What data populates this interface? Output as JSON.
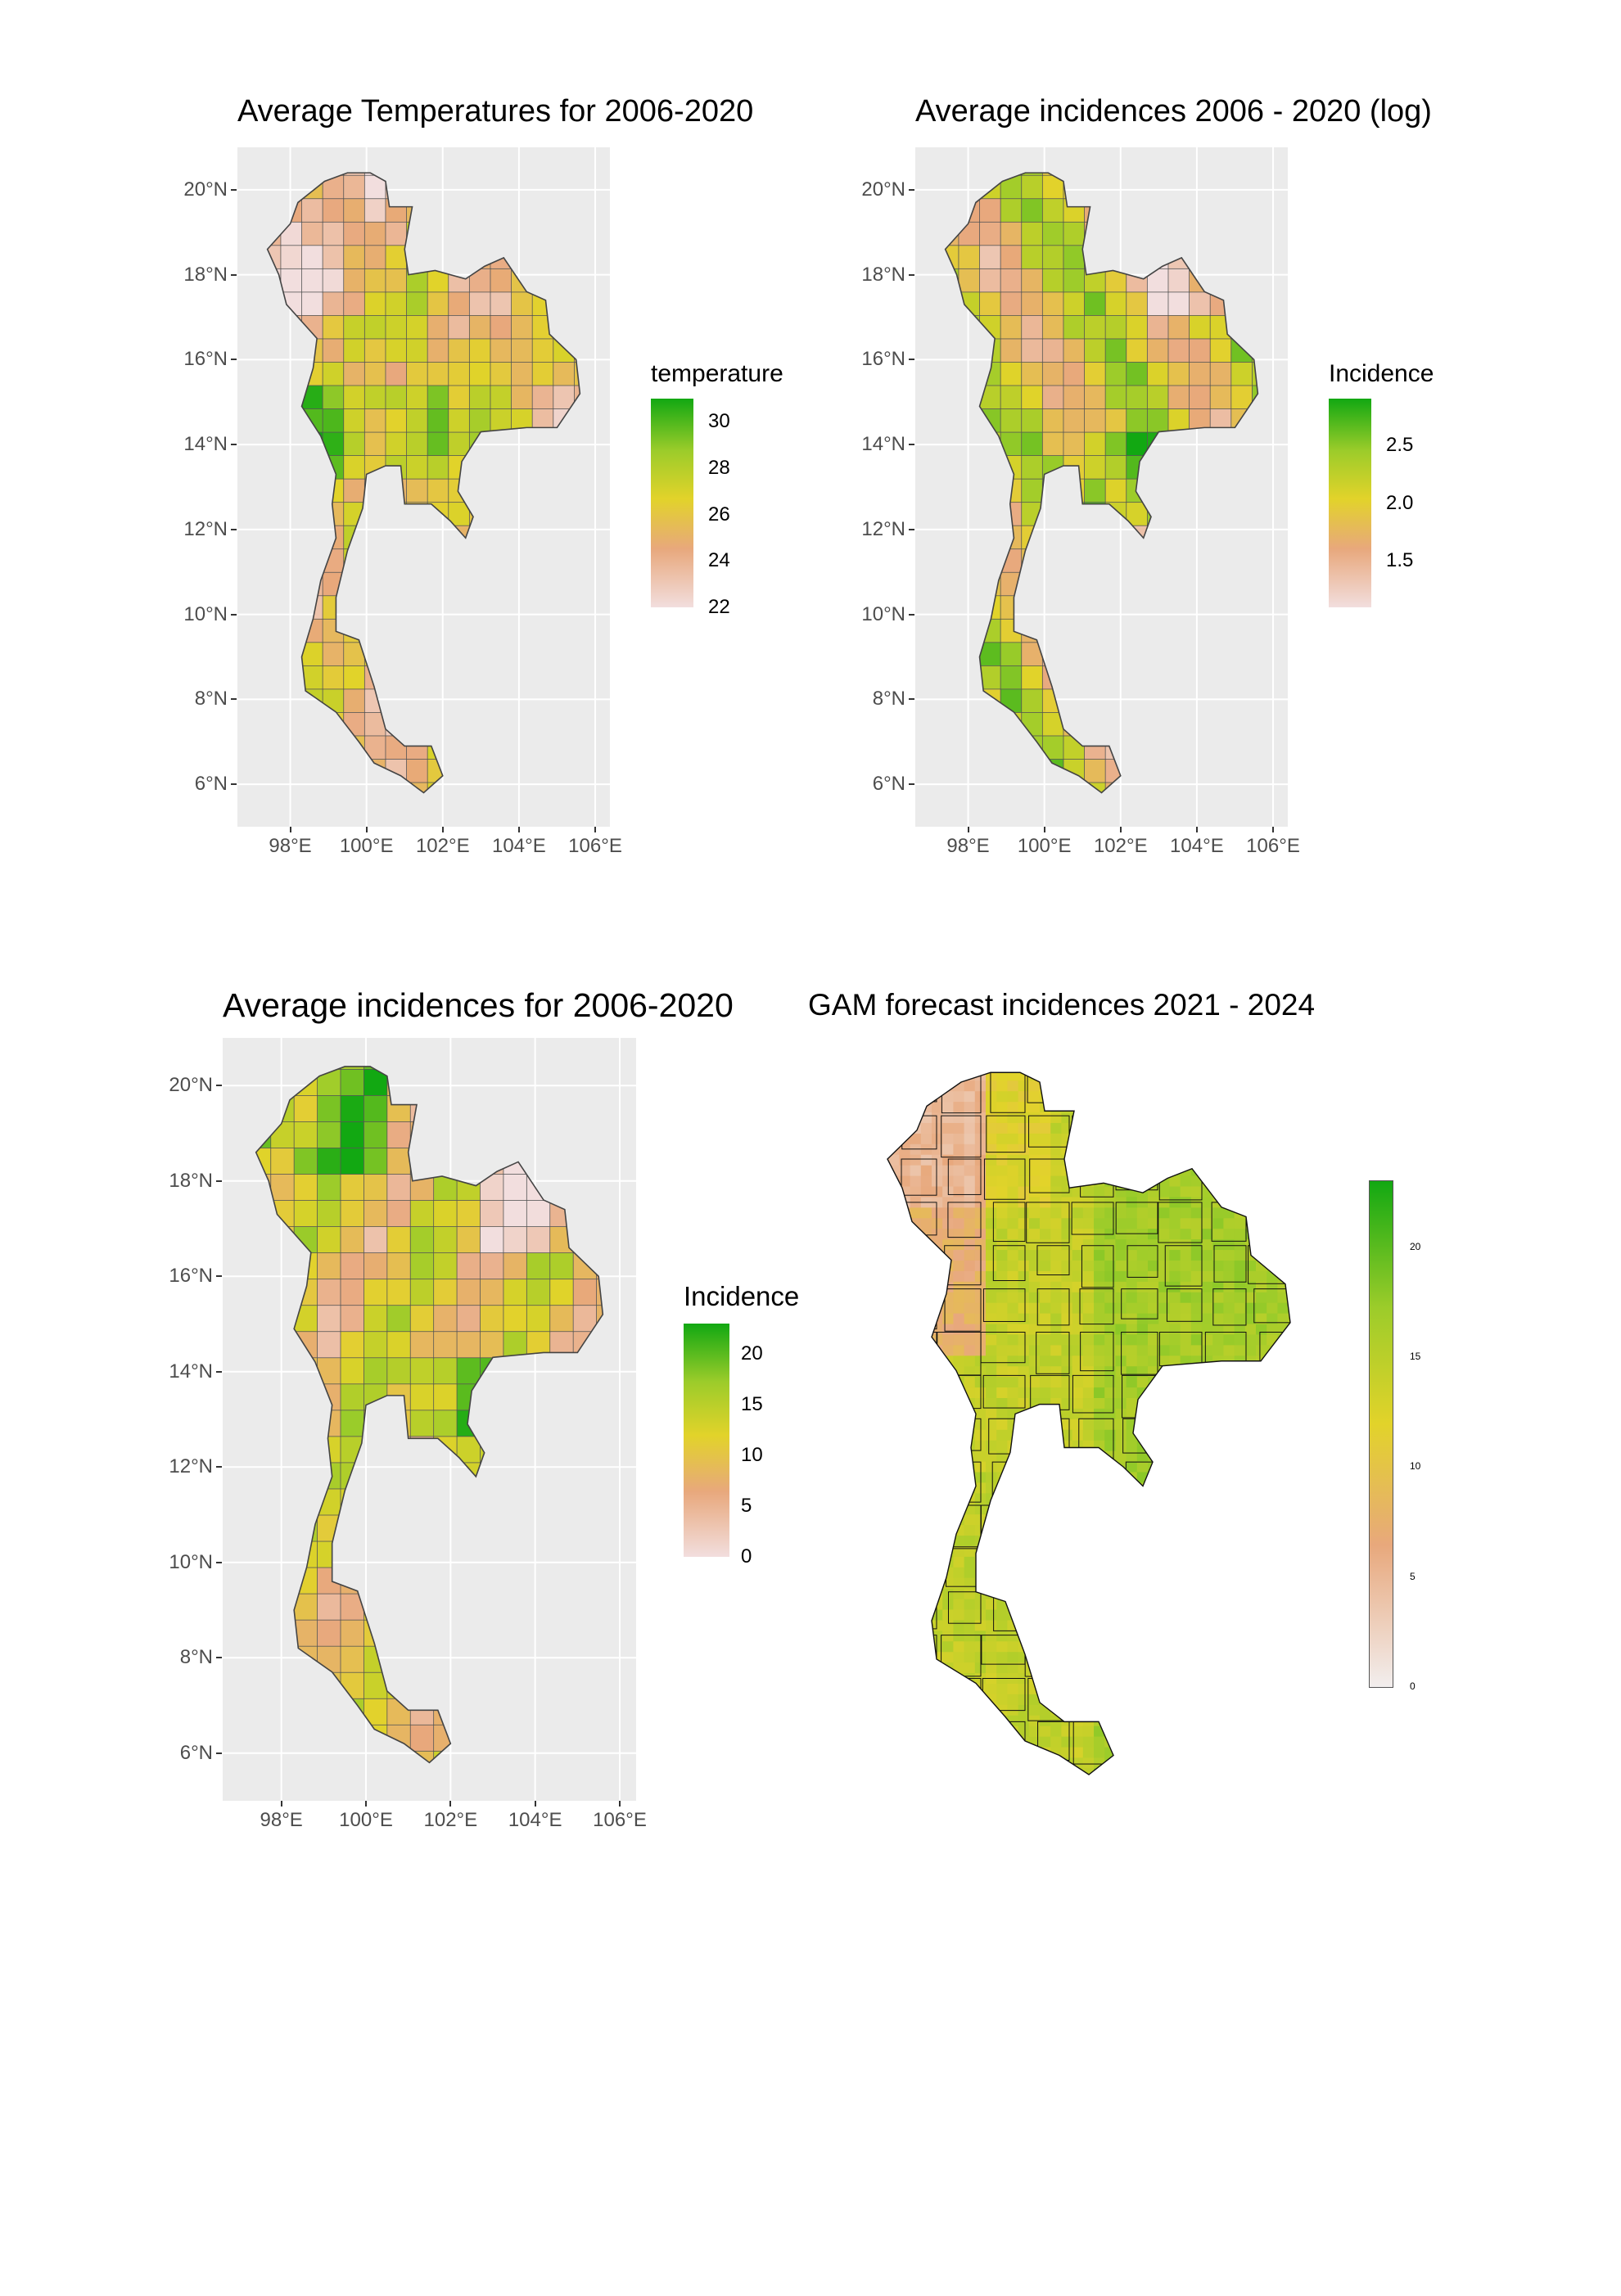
{
  "figure": {
    "maps": [
      {
        "title": "Average Temperatures for 2006-2020",
        "legend_title": "temperature",
        "legend_ticks": [
          "30",
          "28",
          "26",
          "24",
          "22"
        ],
        "y_ticks": [
          "20°N",
          "18°N",
          "16°N",
          "14°N",
          "12°N",
          "10°N",
          "8°N",
          "6°N"
        ],
        "x_ticks": [
          "98°E",
          "100°E",
          "102°E",
          "104°E",
          "106°E"
        ]
      },
      {
        "title": "Average incidences 2006 - 2020  (log)",
        "legend_title": "Incidence",
        "legend_ticks": [
          "2.5",
          "2.0",
          "1.5"
        ],
        "y_ticks": [
          "20°N",
          "18°N",
          "16°N",
          "14°N",
          "12°N",
          "10°N",
          "8°N",
          "6°N"
        ],
        "x_ticks": [
          "98°E",
          "100°E",
          "102°E",
          "104°E",
          "106°E"
        ]
      },
      {
        "title": "Average incidences for 2006-2020",
        "legend_title": "Incidence",
        "legend_ticks": [
          "20",
          "15",
          "10",
          "5",
          "0"
        ],
        "y_ticks": [
          "20°N",
          "18°N",
          "16°N",
          "14°N",
          "12°N",
          "10°N",
          "8°N",
          "6°N"
        ],
        "x_ticks": [
          "98°E",
          "100°E",
          "102°E",
          "104°E",
          "106°E"
        ]
      },
      {
        "title": "GAM forecast incidences 2021 - 2024",
        "legend_ticks": [
          "20",
          "15",
          "10",
          "5",
          "0"
        ]
      }
    ]
  },
  "chart_data": [
    {
      "type": "heatmap",
      "title": "Average Temperatures for 2006-2020",
      "legend": "temperature",
      "scale_range": [
        22,
        31
      ],
      "colors": {
        "low": "#f2dede",
        "mid_low": "#e8a87c",
        "mid": "#e2d32a",
        "mid_high": "#9ccc2a",
        "high": "#12a812"
      },
      "xlim": [
        97,
        106
      ],
      "ylim": [
        5,
        21
      ]
    },
    {
      "type": "heatmap",
      "title": "Average incidences 2006 - 2020  (log)",
      "legend": "Incidence",
      "scale_range": [
        1.1,
        2.9
      ],
      "colors": {
        "low": "#f2dede",
        "mid_low": "#e8a87c",
        "mid": "#e2d32a",
        "mid_high": "#9ccc2a",
        "high": "#12a812"
      },
      "xlim": [
        97,
        106
      ],
      "ylim": [
        5,
        21
      ]
    },
    {
      "type": "heatmap",
      "title": "Average incidences for 2006-2020",
      "legend": "Incidence",
      "scale_range": [
        0,
        23
      ],
      "colors": {
        "low": "#f2dede",
        "mid_low": "#e8a87c",
        "mid": "#e2d32a",
        "mid_high": "#9ccc2a",
        "high": "#12a812"
      },
      "xlim": [
        97,
        106
      ],
      "ylim": [
        5,
        21
      ]
    },
    {
      "type": "heatmap",
      "title": "GAM forecast incidences 2021 - 2024",
      "scale_range": [
        0,
        23
      ],
      "colors": {
        "low": "#f2eeee",
        "mid_low": "#e8a87c",
        "mid": "#e2d32a",
        "mid_high": "#9ccc2a",
        "high": "#12a812"
      }
    }
  ]
}
